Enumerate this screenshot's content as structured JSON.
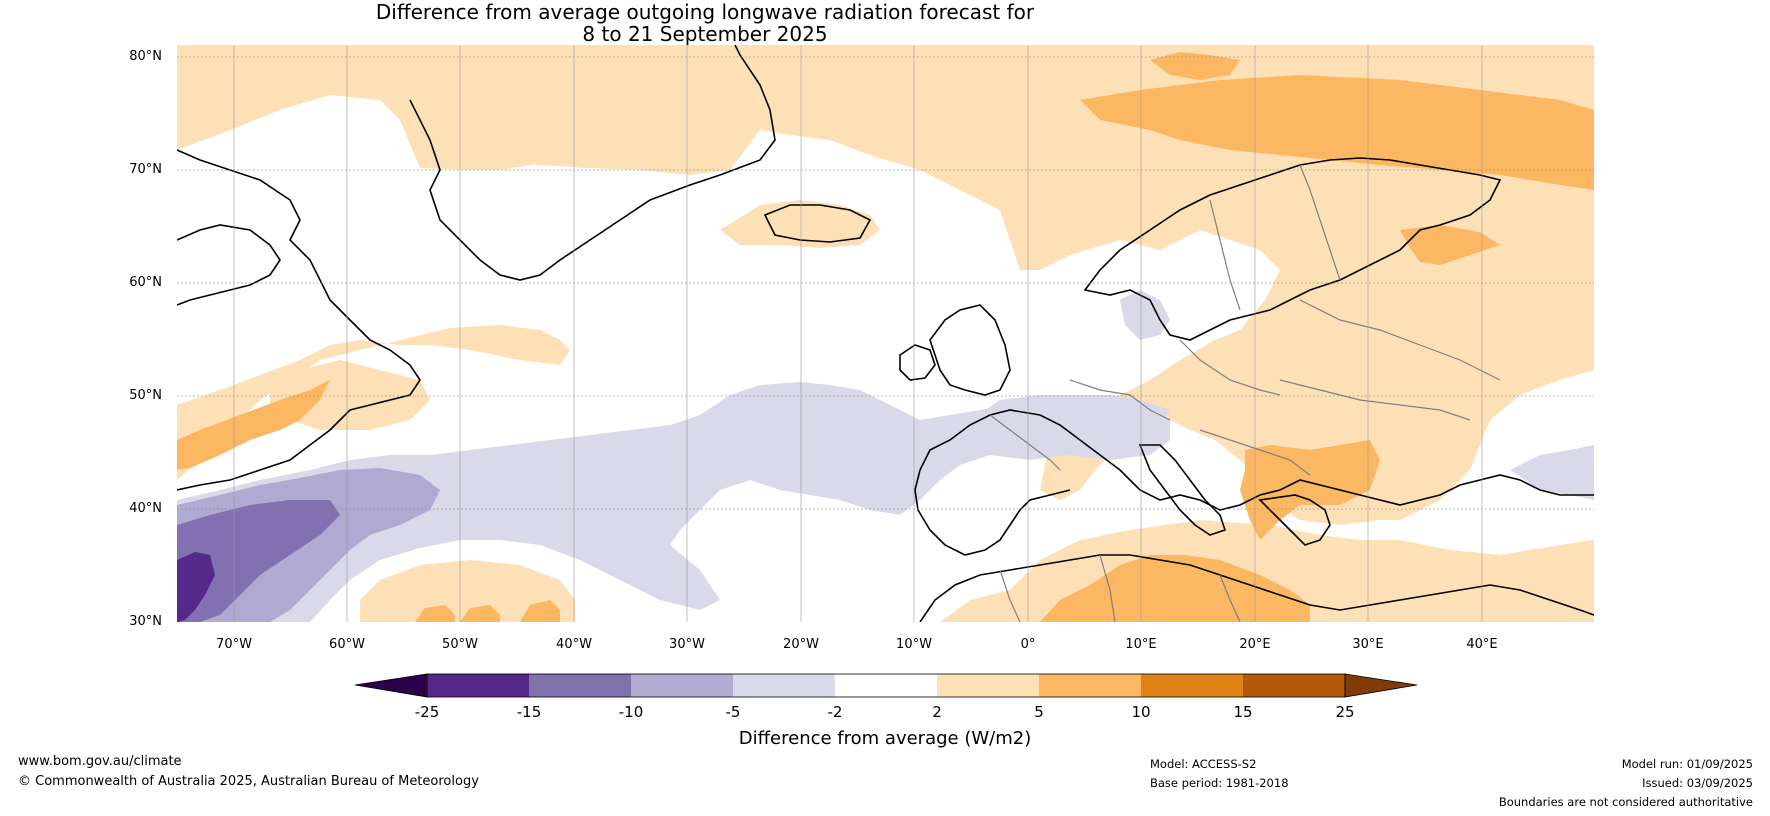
{
  "title": {
    "line1": "Difference from average outgoing longwave radiation forecast for",
    "line2": "8 to 21 September 2025"
  },
  "map": {
    "lat_labels": [
      "80°N",
      "70°N",
      "60°N",
      "50°N",
      "40°N",
      "30°N"
    ],
    "lon_labels": [
      "70°W",
      "60°W",
      "50°W",
      "40°W",
      "30°W",
      "20°W",
      "10°W",
      "0°",
      "10°E",
      "20°E",
      "30°E",
      "40°E"
    ],
    "colors": {
      "neg2": "#d9d9ea",
      "neg5": "#b0a9d1",
      "neg10": "#8271b0",
      "neg15": "#55298a",
      "pos2": "#fde0b6",
      "pos5": "#fbb762",
      "coast": "#000000",
      "border": "#808080"
    }
  },
  "colorbar": {
    "ticks": [
      "-25",
      "-15",
      "-10",
      "-5",
      "-2",
      "2",
      "5",
      "10",
      "15",
      "25"
    ],
    "colors": [
      "#2d004b",
      "#542788",
      "#8073ac",
      "#b2abd2",
      "#d8daeb",
      "#ffffff",
      "#fee0b6",
      "#fdb863",
      "#e08214",
      "#b35806",
      "#7f3b08"
    ],
    "label": "Difference from average (W/m2)"
  },
  "footer": {
    "website": "www.bom.gov.au/climate",
    "copyright": "© Commonwealth of Australia 2025, Australian Bureau of Meteorology",
    "model": "Model: ACCESS-S2",
    "base_period": "Base period: 1981-2018",
    "model_run": "Model run: 01/09/2025",
    "issued": "Issued: 03/09/2025",
    "disclaimer": "Boundaries are not considered authoritative"
  }
}
